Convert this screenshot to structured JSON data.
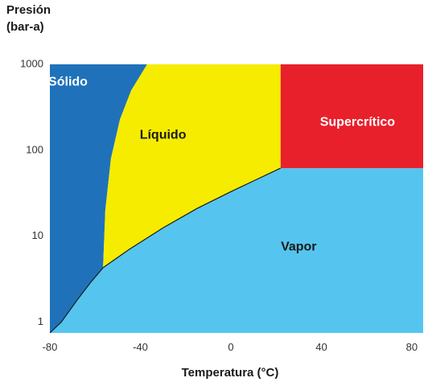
{
  "chart_data": {
    "type": "area",
    "ylabel_line1": "Presión",
    "ylabel_line2": "(bar-a)",
    "xlabel": "Temperatura (°C)",
    "x_range": [
      -80,
      85
    ],
    "y_range": [
      0.75,
      1000
    ],
    "y_scale": "log",
    "x_ticks": [
      -80,
      -40,
      0,
      40,
      80
    ],
    "x_tick_labels": [
      "-80",
      "-40",
      "0",
      "40",
      "80"
    ],
    "y_ticks": [
      1,
      10,
      100,
      1000
    ],
    "y_tick_labels": [
      "1",
      "10",
      "100",
      "1000"
    ],
    "critical_point": {
      "x": 22,
      "y": 62
    },
    "triple_point": {
      "x": -56.5,
      "y": 4.3
    },
    "boundaries": {
      "sublimation": [
        [
          -80,
          0.75
        ],
        [
          -75,
          1.0
        ],
        [
          -68,
          1.8
        ],
        [
          -62,
          2.9
        ],
        [
          -56.5,
          4.3
        ]
      ],
      "vaporization": [
        [
          -56.5,
          4.3
        ],
        [
          -45,
          7.0
        ],
        [
          -30,
          12.5
        ],
        [
          -15,
          21
        ],
        [
          0,
          33
        ],
        [
          10,
          44
        ],
        [
          22,
          62
        ]
      ],
      "melting": [
        [
          -56.5,
          4.3
        ],
        [
          -55.5,
          20
        ],
        [
          -53,
          80
        ],
        [
          -49,
          230
        ],
        [
          -44,
          500
        ],
        [
          -37,
          1000
        ]
      ],
      "solid_left_edge": [
        [
          -80,
          0.75
        ],
        [
          -80,
          1000
        ]
      ]
    },
    "regions": [
      {
        "id": "solid",
        "label": "Sólido",
        "color": "#1f72ba",
        "text_color": "#ffffff",
        "label_at": [
          -72,
          620
        ]
      },
      {
        "id": "liquid",
        "label": "Líquido",
        "color": "#f6ec00",
        "text_color": "#1a1a1a",
        "label_at": [
          -30,
          150
        ]
      },
      {
        "id": "supercritical",
        "label": "Supercrítico",
        "color": "#e8202b",
        "text_color": "#ffffff",
        "label_at": [
          56,
          210
        ]
      },
      {
        "id": "vapor",
        "label": "Vapor",
        "color": "#55c5f0",
        "text_color": "#1a1a1a",
        "label_at": [
          30,
          7.5
        ]
      }
    ],
    "grid": false,
    "legend": "none"
  }
}
